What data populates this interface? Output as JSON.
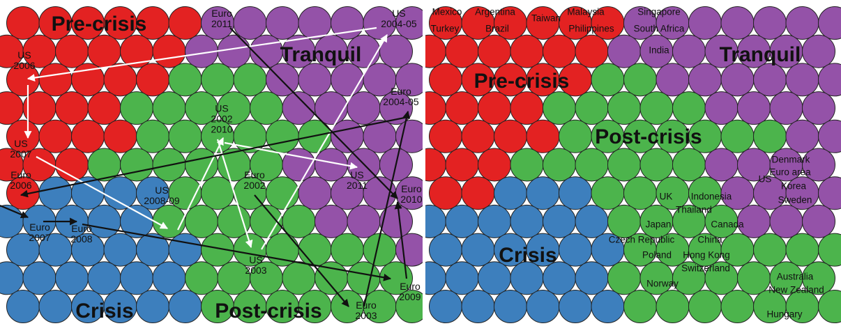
{
  "left_map": {
    "region_labels": [
      "Pre-crisis",
      "Tranquil",
      "Crisis",
      "Post-crisis"
    ],
    "point_labels": [
      [
        "Euro",
        "2011"
      ],
      [
        "US",
        "2004-05"
      ],
      [
        "US",
        "2006"
      ],
      [
        "Euro",
        "2004-05"
      ],
      [
        "US",
        "2002",
        "2010"
      ],
      [
        "US",
        "2007"
      ],
      [
        "Euro",
        "2006"
      ],
      [
        "Euro",
        "2002"
      ],
      [
        "US",
        "2011"
      ],
      [
        "Euro",
        "2010"
      ],
      [
        "US",
        "2008-09"
      ],
      [
        "Euro",
        "2007"
      ],
      [
        "Euro",
        "2008"
      ],
      [
        "US",
        "2003"
      ],
      [
        "Euro",
        "2009"
      ],
      [
        "Euro",
        "2003"
      ]
    ]
  },
  "right_map": {
    "region_labels": [
      "Tranquil",
      "Pre-crisis",
      "Post-crisis",
      "Crisis"
    ],
    "country_labels": [
      "Mexico",
      "Turkey",
      "Argentina",
      "Brazil",
      "Taiwan",
      "Malaysia",
      "Philippines",
      "Singapore",
      "South Africa",
      "India",
      "Denmark",
      "Euro area",
      "US",
      "Korea",
      "Sweden",
      "UK",
      "Indonesia",
      "Thailand",
      "Japan",
      "Canada",
      "Czech Republic",
      "China",
      "Poland",
      "Hong Kong",
      "Switzerland",
      "Australia",
      "Norway",
      "New Zealand",
      "Hungary"
    ]
  }
}
